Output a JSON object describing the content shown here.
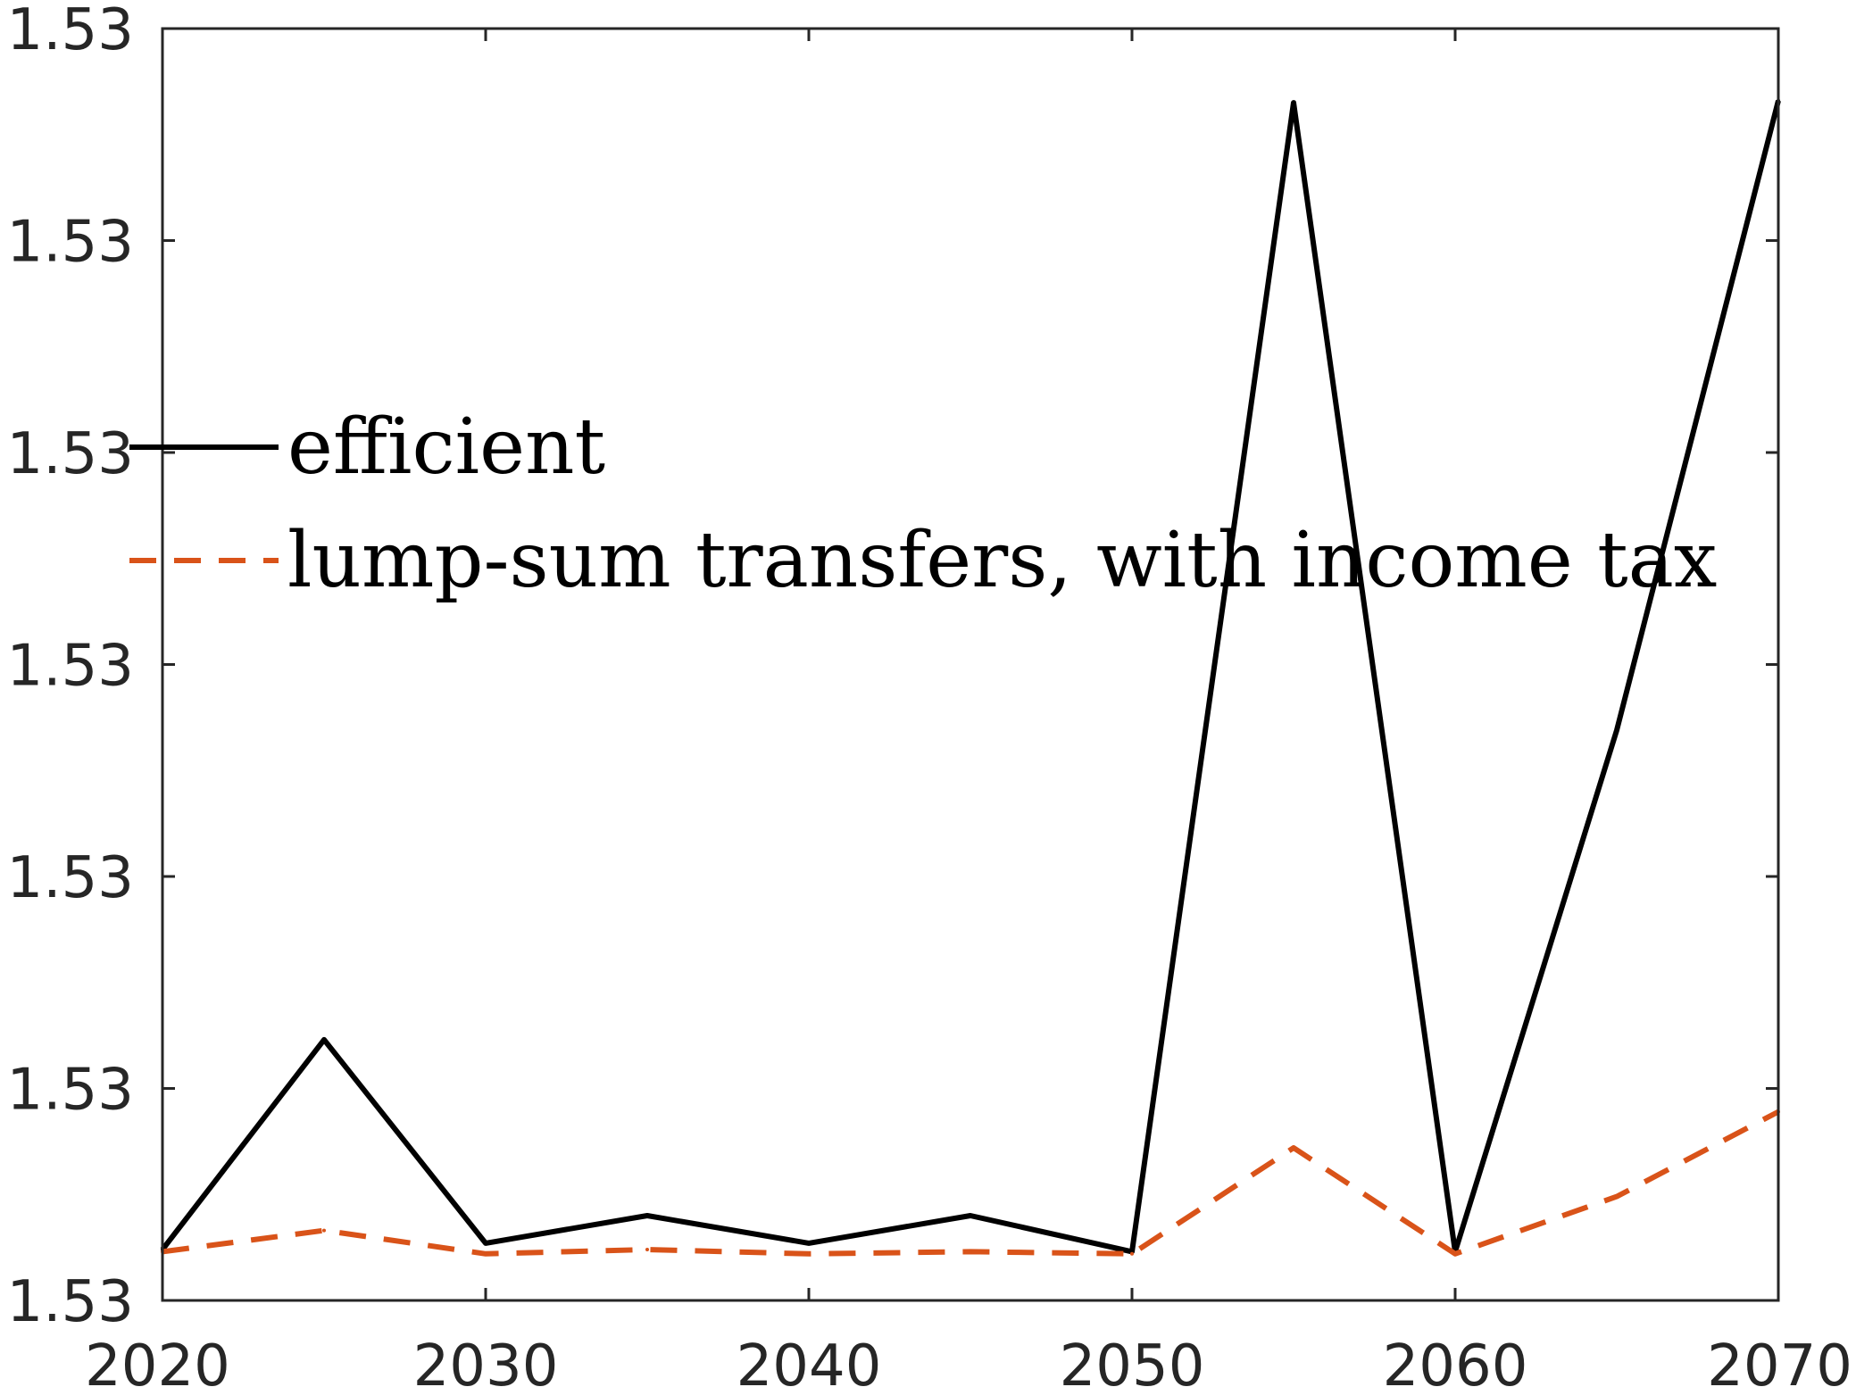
{
  "chart_data": {
    "type": "line",
    "title": "",
    "xlabel": "",
    "ylabel": "",
    "xlim": [
      2020,
      2070
    ],
    "ylim": [
      0,
      6
    ],
    "x_ticks": [
      2020,
      2030,
      2040,
      2050,
      2060,
      2070
    ],
    "x_tick_labels": [
      "2020",
      "2030",
      "2040",
      "2050",
      "2060",
      "2070"
    ],
    "y_ticks": [
      0,
      1,
      2,
      3,
      4,
      5,
      6
    ],
    "y_tick_labels": [
      "1.53",
      "1.53",
      "1.53",
      "1.53",
      "1.53",
      "1.53",
      "1.53"
    ],
    "grid": false,
    "legend_position": "center-left",
    "x": [
      2020,
      2025,
      2030,
      2035,
      2040,
      2045,
      2050,
      2055,
      2060,
      2065,
      2070
    ],
    "series": [
      {
        "name": "efficient",
        "color": "#000000",
        "style": "solid",
        "values": [
          0.24,
          1.23,
          0.27,
          0.4,
          0.27,
          0.4,
          0.23,
          5.65,
          0.23,
          2.69,
          5.66
        ]
      },
      {
        "name": "lump-sum transfers, with income tax",
        "color": "#D95319",
        "style": "dashed",
        "values": [
          0.23,
          0.33,
          0.22,
          0.24,
          0.22,
          0.23,
          0.22,
          0.72,
          0.22,
          0.49,
          0.89
        ]
      }
    ]
  }
}
